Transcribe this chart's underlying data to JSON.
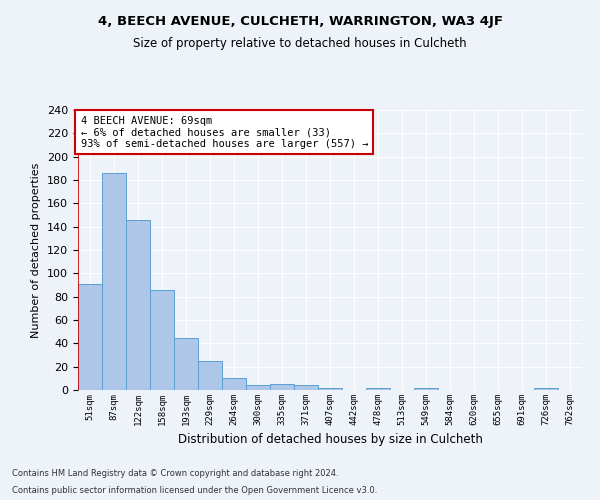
{
  "title": "4, BEECH AVENUE, CULCHETH, WARRINGTON, WA3 4JF",
  "subtitle": "Size of property relative to detached houses in Culcheth",
  "xlabel": "Distribution of detached houses by size in Culcheth",
  "ylabel": "Number of detached properties",
  "footnote1": "Contains HM Land Registry data © Crown copyright and database right 2024.",
  "footnote2": "Contains public sector information licensed under the Open Government Licence v3.0.",
  "annotation_line1": "4 BEECH AVENUE: 69sqm",
  "annotation_line2": "← 6% of detached houses are smaller (33)",
  "annotation_line3": "93% of semi-detached houses are larger (557) →",
  "bar_labels": [
    "51sqm",
    "87sqm",
    "122sqm",
    "158sqm",
    "193sqm",
    "229sqm",
    "264sqm",
    "300sqm",
    "335sqm",
    "371sqm",
    "407sqm",
    "442sqm",
    "478sqm",
    "513sqm",
    "549sqm",
    "584sqm",
    "620sqm",
    "655sqm",
    "691sqm",
    "726sqm",
    "762sqm"
  ],
  "bar_values": [
    91,
    186,
    146,
    86,
    45,
    25,
    10,
    4,
    5,
    4,
    2,
    0,
    2,
    0,
    2,
    0,
    0,
    0,
    0,
    2,
    0
  ],
  "bar_color": "#aec6e8",
  "bar_edge_color": "#5a9fd4",
  "highlight_line_color": "#cc0000",
  "annotation_box_edge_color": "#cc0000",
  "background_color": "#eef2f9",
  "grid_color": "#ffffff",
  "ylim": [
    0,
    240
  ],
  "yticks": [
    0,
    20,
    40,
    60,
    80,
    100,
    120,
    140,
    160,
    180,
    200,
    220,
    240
  ],
  "figsize": [
    6.0,
    5.0
  ],
  "dpi": 100
}
